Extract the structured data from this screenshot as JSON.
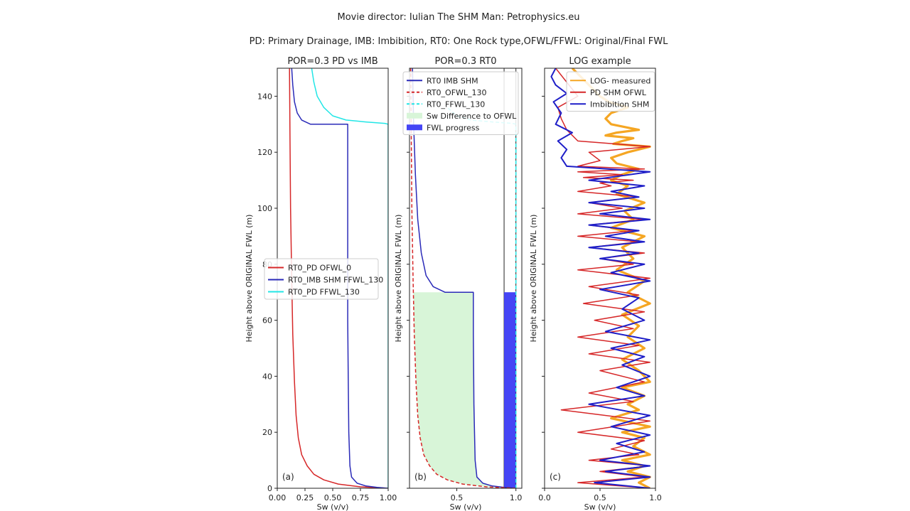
{
  "header": {
    "title": "Movie director: Iulian The SHM Man: Petrophysics.eu",
    "subtitle": "PD: Primary Drainage, IMB: Imbibition, RT0: One Rock type,OFWL/FFWL: Original/Final FWL"
  },
  "chart_data": [
    {
      "type": "line",
      "title": "POR=0.3 PD vs IMB",
      "panel_label": "(a)",
      "xlabel": "Sw (v/v)",
      "ylabel": "Height above ORIGINAL FWL (m)",
      "xlim": [
        0,
        1
      ],
      "ylim": [
        0,
        150
      ],
      "xticks": [
        0.0,
        0.25,
        0.5,
        0.75,
        1.0
      ],
      "xtick_labels": [
        "0.00",
        "0.25",
        "0.50",
        "0.75",
        "1.00"
      ],
      "yticks": [
        0,
        20,
        40,
        60,
        80,
        100,
        120,
        140
      ],
      "ytick_labels": [
        "0",
        "20",
        "40",
        "60",
        "80",
        "100",
        "120",
        "140"
      ],
      "legend_position": "center-left",
      "series": [
        {
          "name": "RT0_PD OFWL_0",
          "color": "#d62728",
          "x": [
            1.0,
            0.75,
            0.55,
            0.42,
            0.33,
            0.27,
            0.22,
            0.19,
            0.17,
            0.155,
            0.14,
            0.13,
            0.12,
            0.115,
            0.11
          ],
          "y": [
            0,
            0.5,
            1.5,
            3,
            5,
            8,
            12,
            18,
            26,
            38,
            55,
            75,
            100,
            125,
            150
          ]
        },
        {
          "name": "RT0_IMB SHM FFWL_130",
          "color": "#2a2ab8",
          "x": [
            1.0,
            0.9,
            0.8,
            0.72,
            0.67,
            0.655,
            0.645,
            0.64,
            0.635,
            0.635,
            0.635,
            0.635,
            0.635,
            0.3,
            0.22,
            0.18,
            0.155,
            0.14,
            0.13
          ],
          "y": [
            0,
            0.3,
            0.8,
            1.8,
            4,
            8,
            20,
            40,
            60,
            80,
            100,
            120,
            130,
            130,
            131.5,
            134,
            138,
            144,
            150
          ]
        },
        {
          "name": "RT0_PD FFWL_130",
          "color": "#22e6e6",
          "x": [
            1.0,
            1.0,
            1.0,
            0.97,
            0.8,
            0.62,
            0.5,
            0.42,
            0.36,
            0.33,
            0.31
          ],
          "y": [
            0,
            60,
            130,
            130.3,
            130.8,
            131.5,
            133,
            136,
            140,
            145,
            150
          ]
        }
      ]
    },
    {
      "type": "line",
      "title": "POR=0.3 RT0",
      "panel_label": "(b)",
      "xlabel": "Sw (v/v)",
      "ylabel": "Height above ORIGINAL FWL (m)",
      "xlim": [
        0.1,
        1.05
      ],
      "ylim": [
        0,
        150
      ],
      "xticks": [
        0.5,
        1.0
      ],
      "xtick_labels": [
        "0.5",
        "1.0"
      ],
      "legend_position": "top-right",
      "series": [
        {
          "name": "RT0 IMB SHM",
          "color": "#2a2ab8",
          "x": [
            1.0,
            0.9,
            0.8,
            0.72,
            0.67,
            0.655,
            0.645,
            0.64,
            0.64,
            0.4,
            0.3,
            0.24,
            0.2,
            0.17,
            0.15,
            0.135,
            0.125
          ],
          "y": [
            0,
            0.3,
            0.8,
            1.8,
            4,
            10,
            30,
            55,
            70,
            70,
            72,
            76,
            84,
            96,
            112,
            130,
            150
          ]
        },
        {
          "name": "RT0_OFWL_130",
          "color": "#d62728",
          "dash": true,
          "x": [
            1.0,
            0.75,
            0.55,
            0.42,
            0.33,
            0.27,
            0.22,
            0.19,
            0.17,
            0.155,
            0.14,
            0.13,
            0.12,
            0.115,
            0.11
          ],
          "y": [
            0,
            0.5,
            1.5,
            3,
            5,
            8,
            12,
            18,
            26,
            38,
            55,
            75,
            100,
            125,
            150
          ]
        },
        {
          "name": "RT0_FFWL_130",
          "color": "#22e6e6",
          "dash": true,
          "x": [
            1.0,
            1.0,
            1.0,
            0.97,
            0.8,
            0.62,
            0.5,
            0.42
          ],
          "y": [
            0,
            60,
            130,
            130.3,
            130.8,
            131.5,
            133,
            136
          ]
        }
      ],
      "fill_between": {
        "name": "Sw Difference to OFWL",
        "color": "#d8f5d8"
      },
      "fwl_progress": {
        "name": "FWL progress",
        "color": "#4545f5",
        "value": 70,
        "x_left": 0.9,
        "x_right": 1.0,
        "total": 150
      }
    },
    {
      "type": "line",
      "title": "LOG example",
      "panel_label": "(c)",
      "xlabel": "Sw (v/v)",
      "ylabel": "Height above ORIGINAL FWL (m)",
      "xlim": [
        0,
        1.0
      ],
      "ylim": [
        0,
        150
      ],
      "xticks": [
        0.0,
        0.5,
        1.0
      ],
      "xtick_labels": [
        "0.0",
        "0.5",
        "1.0"
      ],
      "legend_position": "top-right",
      "series": [
        {
          "name": "LOG- measured",
          "color": "#f5a623",
          "width": 3.2,
          "x": [
            0.95,
            0.85,
            0.95,
            0.75,
            0.9,
            0.7,
            0.95,
            0.8,
            0.9,
            0.7,
            0.95,
            0.6,
            0.85,
            0.75,
            0.9,
            0.7,
            0.95,
            0.85,
            0.7,
            0.9,
            0.75,
            0.85,
            0.7,
            0.95,
            0.75,
            0.9,
            0.65,
            0.8,
            0.7,
            0.9,
            0.6,
            0.8,
            0.72,
            0.9,
            0.65,
            0.75,
            0.6,
            0.7,
            0.85,
            0.65,
            0.6,
            0.75,
            0.95,
            0.62,
            0.7,
            0.8,
            0.55,
            0.65,
            0.85,
            0.6,
            0.55,
            0.6,
            0.75,
            0.58,
            0.5,
            0.45,
            0.4,
            0.35,
            0.3,
            0.25
          ],
          "y": [
            0,
            2,
            4,
            6,
            8,
            10,
            12,
            15,
            18,
            20,
            22,
            25,
            28,
            30,
            33,
            36,
            38,
            42,
            46,
            50,
            54,
            58,
            62,
            66,
            70,
            74,
            78,
            82,
            86,
            90,
            93,
            96,
            99,
            102,
            105,
            108,
            110,
            112,
            114,
            116,
            118,
            120,
            122,
            123,
            124,
            125,
            126,
            127,
            128,
            130,
            132,
            134,
            136,
            138,
            140,
            142,
            144,
            146,
            148,
            150
          ]
        },
        {
          "name": "PD SHM OFWL",
          "color": "#d62728",
          "width": 1.5,
          "x": [
            0.95,
            0.3,
            0.9,
            0.5,
            0.95,
            0.4,
            0.85,
            0.6,
            0.9,
            0.3,
            0.95,
            0.15,
            0.8,
            0.4,
            0.9,
            0.5,
            0.95,
            0.4,
            0.85,
            0.3,
            0.8,
            0.45,
            0.9,
            0.35,
            0.85,
            0.4,
            0.95,
            0.3,
            0.8,
            0.5,
            0.9,
            0.4,
            0.85,
            0.3,
            0.8,
            0.4,
            0.9,
            0.3,
            0.7,
            0.4,
            0.85,
            0.3,
            0.6,
            0.5,
            0.8,
            0.35,
            0.7,
            0.3,
            0.9,
            0.3,
            0.5,
            0.4,
            0.95,
            0.3,
            0.2,
            0.15,
            0.12,
            0.3,
            0.1
          ],
          "y": [
            0,
            2,
            4,
            6,
            8,
            10,
            12,
            14,
            17,
            20,
            24,
            28,
            31,
            34,
            38,
            42,
            45,
            48,
            51,
            54,
            57,
            60,
            63,
            66,
            69,
            72,
            75,
            78,
            80,
            82,
            84,
            86,
            88,
            90,
            92,
            94,
            96,
            98,
            100,
            102,
            104,
            106,
            108,
            109,
            110,
            111,
            112,
            113,
            114,
            115,
            117,
            120,
            122,
            124,
            128,
            132,
            136,
            140,
            150
          ]
        },
        {
          "name": "Imbibition SHM",
          "color": "#1f1fc8",
          "width": 2.0,
          "x": [
            0.95,
            0.45,
            0.95,
            0.55,
            0.95,
            0.5,
            0.9,
            0.65,
            0.95,
            0.6,
            0.95,
            0.4,
            0.9,
            0.65,
            0.95,
            0.7,
            0.9,
            0.6,
            0.95,
            0.55,
            0.9,
            0.7,
            0.85,
            0.5,
            0.95,
            0.6,
            0.9,
            0.5,
            0.85,
            0.4,
            0.9,
            0.55,
            0.85,
            0.4,
            0.95,
            0.5,
            0.9,
            0.4,
            0.85,
            0.6,
            0.9,
            0.4,
            0.95,
            0.2,
            0.15,
            0.2,
            0.12,
            0.25,
            0.1,
            0.15,
            0.08,
            0.2,
            0.1,
            0.06,
            0.1
          ],
          "y": [
            0,
            2,
            4,
            6,
            8,
            10,
            13,
            16,
            19,
            22,
            26,
            30,
            33,
            36,
            40,
            44,
            47,
            50,
            53,
            56,
            60,
            64,
            68,
            71,
            74,
            77,
            80,
            82,
            84,
            86,
            88,
            90,
            92,
            94,
            96,
            98,
            100,
            102,
            104,
            106,
            108,
            110,
            113,
            115,
            118,
            121,
            124,
            127,
            130,
            134,
            138,
            141,
            144,
            147,
            150
          ]
        }
      ]
    }
  ]
}
